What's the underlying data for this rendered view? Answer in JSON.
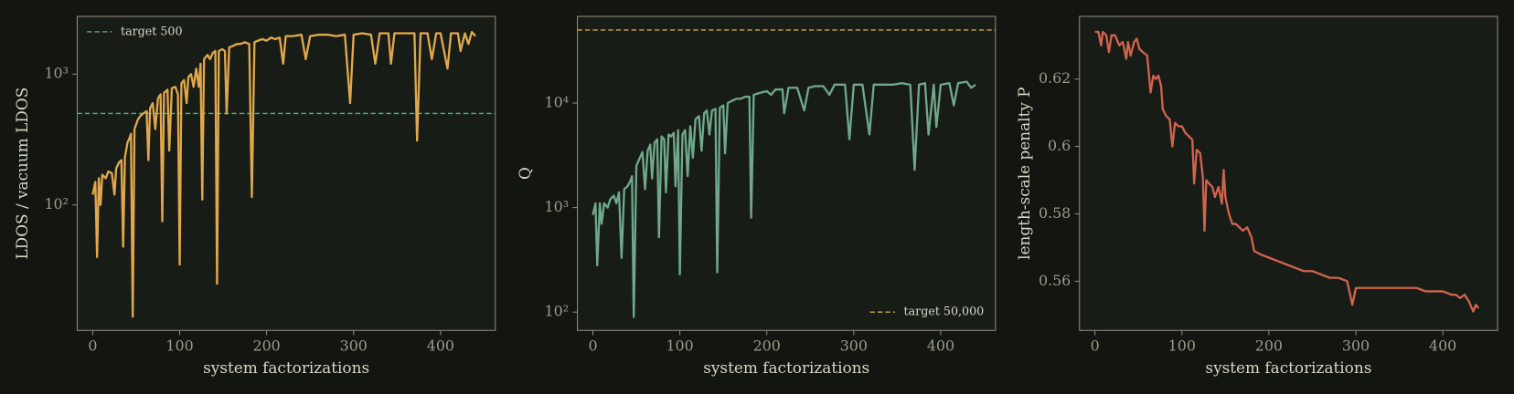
{
  "chart_data": [
    {
      "type": "line",
      "yscale": "log",
      "xlabel": "system factorizations",
      "ylabel": "LDOS / vacuum LDOS",
      "xlim": [
        -17.8,
        463
      ],
      "ylim": [
        11,
        2760
      ],
      "xticks": [
        0,
        100,
        200,
        300,
        400
      ],
      "yticks": [
        {
          "value": 100,
          "label": "10²"
        },
        {
          "value": 1000,
          "label": "10³"
        }
      ],
      "legend": "upper left",
      "hlines": [
        {
          "value": 500,
          "label": "target 500",
          "color": "#6fa88a"
        }
      ],
      "x": [
        0,
        3,
        5,
        7,
        9,
        11,
        15,
        18,
        22,
        25,
        27,
        30,
        33,
        35,
        37,
        40,
        42,
        44,
        46,
        48,
        52,
        55,
        58,
        62,
        64,
        66,
        69,
        72,
        75,
        78,
        80,
        82,
        86,
        88,
        91,
        95,
        98,
        100,
        102,
        105,
        108,
        110,
        113,
        116,
        119,
        122,
        124,
        126,
        128,
        132,
        135,
        138,
        141,
        143,
        145,
        149,
        152,
        154,
        157,
        162,
        166,
        170,
        175,
        180,
        183,
        186,
        190,
        195,
        200,
        205,
        210,
        215,
        219,
        222,
        230,
        240,
        245,
        250,
        260,
        270,
        280,
        290,
        296,
        300,
        310,
        320,
        325,
        330,
        340,
        343,
        347,
        360,
        370,
        373,
        377,
        385,
        390,
        395,
        400,
        408,
        412,
        420,
        423,
        428,
        432,
        436,
        440
      ],
      "series": [
        {
          "color": "#e0a84e",
          "values": [
            120,
            150,
            40,
            160,
            100,
            170,
            160,
            180,
            175,
            120,
            190,
            210,
            220,
            48,
            230,
            300,
            320,
            350,
            14,
            380,
            450,
            480,
            500,
            520,
            220,
            550,
            600,
            380,
            650,
            700,
            75,
            720,
            760,
            260,
            780,
            800,
            700,
            35,
            850,
            900,
            600,
            950,
            1000,
            800,
            1100,
            800,
            1200,
            110,
            1300,
            1400,
            1300,
            1450,
            1500,
            25,
            1500,
            1550,
            1500,
            500,
            1600,
            1650,
            1700,
            1700,
            1750,
            1700,
            115,
            1750,
            1800,
            1850,
            1800,
            1900,
            1850,
            1900,
            1200,
            1950,
            1950,
            2000,
            1300,
            1950,
            2000,
            2000,
            1950,
            2000,
            600,
            2000,
            2050,
            2000,
            1200,
            2050,
            2050,
            1200,
            2050,
            2050,
            2050,
            310,
            2050,
            2050,
            1300,
            2050,
            2050,
            1100,
            2050,
            2050,
            1500,
            2050,
            1700,
            2100,
            1950
          ]
        }
      ]
    },
    {
      "type": "line",
      "yscale": "log",
      "xlabel": "system factorizations",
      "ylabel": "Q",
      "xlim": [
        -17.8,
        463
      ],
      "ylim": [
        66.8,
        67500
      ],
      "xticks": [
        0,
        100,
        200,
        300,
        400
      ],
      "yticks": [
        {
          "value": 100,
          "label": "10²"
        },
        {
          "value": 1000,
          "label": "10³"
        },
        {
          "value": 10000,
          "label": "10⁴"
        }
      ],
      "legend": "lower right",
      "hlines": [
        {
          "value": 50000,
          "label": "target 50,000",
          "color": "#d9a64a"
        }
      ],
      "x": [
        0,
        3,
        5,
        8,
        10,
        13,
        17,
        20,
        24,
        27,
        30,
        33,
        36,
        40,
        43,
        45,
        47,
        50,
        54,
        57,
        60,
        63,
        66,
        68,
        71,
        74,
        76,
        79,
        82,
        84,
        87,
        90,
        93,
        95,
        98,
        100,
        103,
        106,
        109,
        112,
        115,
        118,
        122,
        125,
        128,
        131,
        134,
        137,
        141,
        143,
        146,
        150,
        152,
        155,
        160,
        165,
        170,
        175,
        180,
        182,
        185,
        192,
        200,
        205,
        210,
        218,
        220,
        225,
        235,
        243,
        248,
        255,
        265,
        272,
        278,
        290,
        295,
        300,
        310,
        318,
        323,
        335,
        345,
        355,
        365,
        370,
        375,
        382,
        386,
        392,
        395,
        400,
        410,
        415,
        420,
        430,
        435,
        440
      ],
      "series": [
        {
          "color": "#6fa88a",
          "values": [
            850,
            1100,
            280,
            1100,
            700,
            1100,
            1000,
            1200,
            1300,
            1100,
            1400,
            330,
            1500,
            1600,
            1800,
            2000,
            90,
            2500,
            3000,
            3400,
            1500,
            3500,
            4000,
            1900,
            4200,
            4500,
            520,
            4800,
            4500,
            1400,
            5000,
            4800,
            5200,
            1600,
            5500,
            230,
            5000,
            5500,
            2000,
            6000,
            3000,
            7000,
            7500,
            3500,
            8000,
            8500,
            5000,
            8500,
            8800,
            240,
            9000,
            9500,
            3300,
            10000,
            10500,
            11000,
            11000,
            11500,
            11500,
            800,
            12000,
            12500,
            13000,
            12000,
            13500,
            13500,
            8000,
            14000,
            14000,
            8500,
            14000,
            14500,
            14500,
            12000,
            15000,
            15000,
            4500,
            15000,
            15000,
            5000,
            15000,
            15000,
            15000,
            15500,
            15000,
            2300,
            15000,
            15500,
            5000,
            15000,
            5900,
            15000,
            15500,
            9500,
            15500,
            16000,
            14000,
            15000
          ]
        }
      ]
    },
    {
      "type": "line",
      "yscale": "linear",
      "xlabel": "system factorizations",
      "ylabel": "length-scale penalty P",
      "xlim": [
        -17.8,
        463
      ],
      "ylim": [
        0.5454,
        0.6386
      ],
      "xticks": [
        0,
        100,
        200,
        300,
        400
      ],
      "yticks": [
        0.56,
        0.58,
        0.6,
        0.62
      ],
      "x": [
        0,
        4,
        7,
        9,
        13,
        16,
        19,
        23,
        28,
        32,
        36,
        38,
        41,
        45,
        48,
        51,
        55,
        60,
        64,
        67,
        70,
        73,
        76,
        78,
        82,
        86,
        89,
        92,
        96,
        100,
        104,
        108,
        112,
        114,
        117,
        121,
        124,
        126,
        128,
        131,
        135,
        138,
        142,
        146,
        148,
        150,
        154,
        158,
        162,
        166,
        170,
        175,
        180,
        183,
        190,
        200,
        210,
        220,
        230,
        240,
        250,
        260,
        270,
        280,
        290,
        296,
        300,
        310,
        320,
        330,
        340,
        350,
        360,
        370,
        380,
        390,
        400,
        410,
        415,
        420,
        425,
        430,
        435,
        438,
        441
      ],
      "series": [
        {
          "color": "#d0634e",
          "values": [
            0.634,
            0.634,
            0.63,
            0.634,
            0.633,
            0.628,
            0.633,
            0.633,
            0.63,
            0.631,
            0.626,
            0.631,
            0.627,
            0.631,
            0.632,
            0.629,
            0.628,
            0.627,
            0.616,
            0.621,
            0.62,
            0.621,
            0.618,
            0.611,
            0.609,
            0.608,
            0.6,
            0.607,
            0.606,
            0.606,
            0.604,
            0.603,
            0.602,
            0.589,
            0.599,
            0.598,
            0.591,
            0.575,
            0.59,
            0.589,
            0.588,
            0.585,
            0.588,
            0.583,
            0.593,
            0.585,
            0.58,
            0.577,
            0.577,
            0.576,
            0.575,
            0.576,
            0.573,
            0.569,
            0.568,
            0.567,
            0.566,
            0.565,
            0.564,
            0.563,
            0.563,
            0.562,
            0.561,
            0.561,
            0.56,
            0.553,
            0.558,
            0.558,
            0.558,
            0.558,
            0.558,
            0.558,
            0.558,
            0.558,
            0.557,
            0.557,
            0.557,
            0.556,
            0.556,
            0.555,
            0.556,
            0.554,
            0.551,
            0.553,
            0.552
          ]
        }
      ]
    }
  ]
}
